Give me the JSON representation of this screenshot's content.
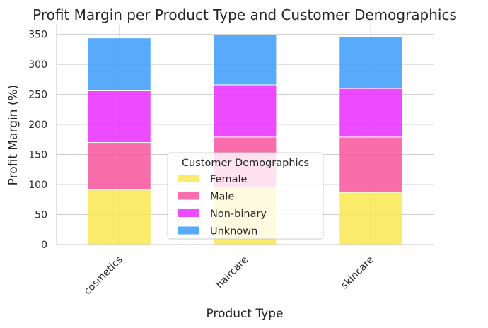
{
  "chart_data": {
    "type": "bar",
    "stacked": true,
    "title": "Profit Margin per Product Type and Customer Demographics",
    "xlabel": "Product Type",
    "ylabel": "Profit Margin (%)",
    "categories": [
      "cosmetics",
      "haircare",
      "skincare"
    ],
    "series": [
      {
        "name": "Female",
        "values": [
          91,
          96,
          87
        ],
        "color": "#f9e850"
      },
      {
        "name": "Male",
        "values": [
          79,
          83,
          92
        ],
        "color": "#f7559b"
      },
      {
        "name": "Non-binary",
        "values": [
          86,
          87,
          81
        ],
        "color": "#ea2cff"
      },
      {
        "name": "Unknown",
        "values": [
          88,
          83,
          86
        ],
        "color": "#3b9cfa"
      }
    ],
    "yticks": [
      0,
      50,
      100,
      150,
      200,
      250,
      300,
      350
    ],
    "ylim": [
      0,
      366
    ],
    "grid": true,
    "legend": {
      "title": "Customer Demographics",
      "placement": "lower-center"
    }
  }
}
